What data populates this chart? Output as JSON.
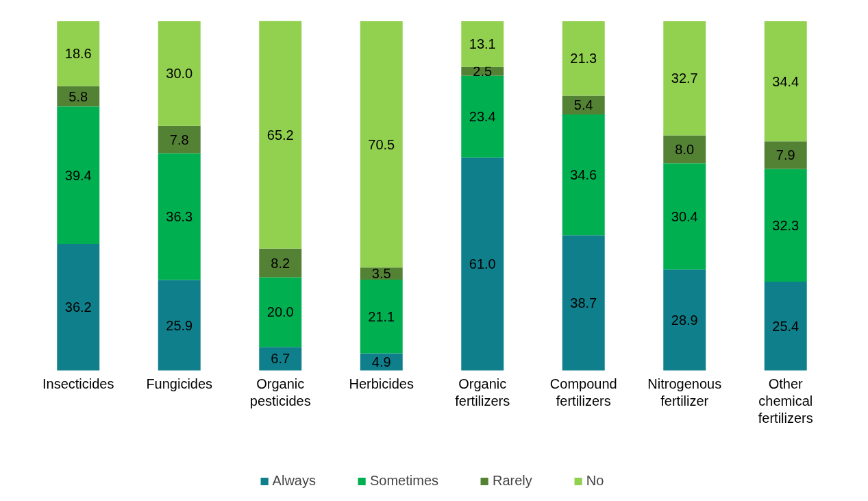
{
  "chart_data": {
    "type": "bar",
    "stacked": true,
    "legend": "bottom",
    "grid": false,
    "categories": [
      "Insecticides",
      "Fungicides",
      "Organic pesticides",
      "Herbicides",
      "Organic fertilizers",
      "Compound fertilizers",
      "Nitrogenous fertilizer",
      "Other chemical fertilizers"
    ],
    "series": [
      {
        "name": "Always",
        "color": "#0f7f8b",
        "values": [
          36.2,
          25.9,
          6.7,
          4.9,
          61.0,
          38.7,
          28.9,
          25.4
        ],
        "value_labels": [
          "36.2",
          "25.9",
          "6.7",
          "4.9",
          "61.0",
          "38.7",
          "28.9",
          "25.4"
        ]
      },
      {
        "name": "Sometimes",
        "color": "#00b050",
        "values": [
          39.4,
          36.3,
          20.0,
          21.1,
          23.4,
          34.6,
          30.4,
          32.3
        ],
        "value_labels": [
          "39.4",
          "36.3",
          "20.0",
          "21.1",
          "23.4",
          "34.6",
          "30.4",
          "32.3"
        ]
      },
      {
        "name": "Rarely",
        "color": "#548235",
        "values": [
          5.8,
          7.8,
          8.2,
          3.5,
          2.5,
          5.4,
          8.0,
          7.9
        ],
        "value_labels": [
          "5.8",
          "7.8",
          "8.2",
          "3.5",
          "2.5",
          "5.4",
          "8.0",
          "7.9"
        ]
      },
      {
        "name": "No",
        "color": "#92d050",
        "values": [
          18.6,
          30.0,
          65.2,
          70.5,
          13.1,
          21.3,
          32.7,
          34.4
        ],
        "value_labels": [
          "18.6",
          "30.0",
          "65.2",
          "70.5",
          "13.1",
          "21.3",
          "32.7",
          "34.4"
        ]
      }
    ]
  }
}
